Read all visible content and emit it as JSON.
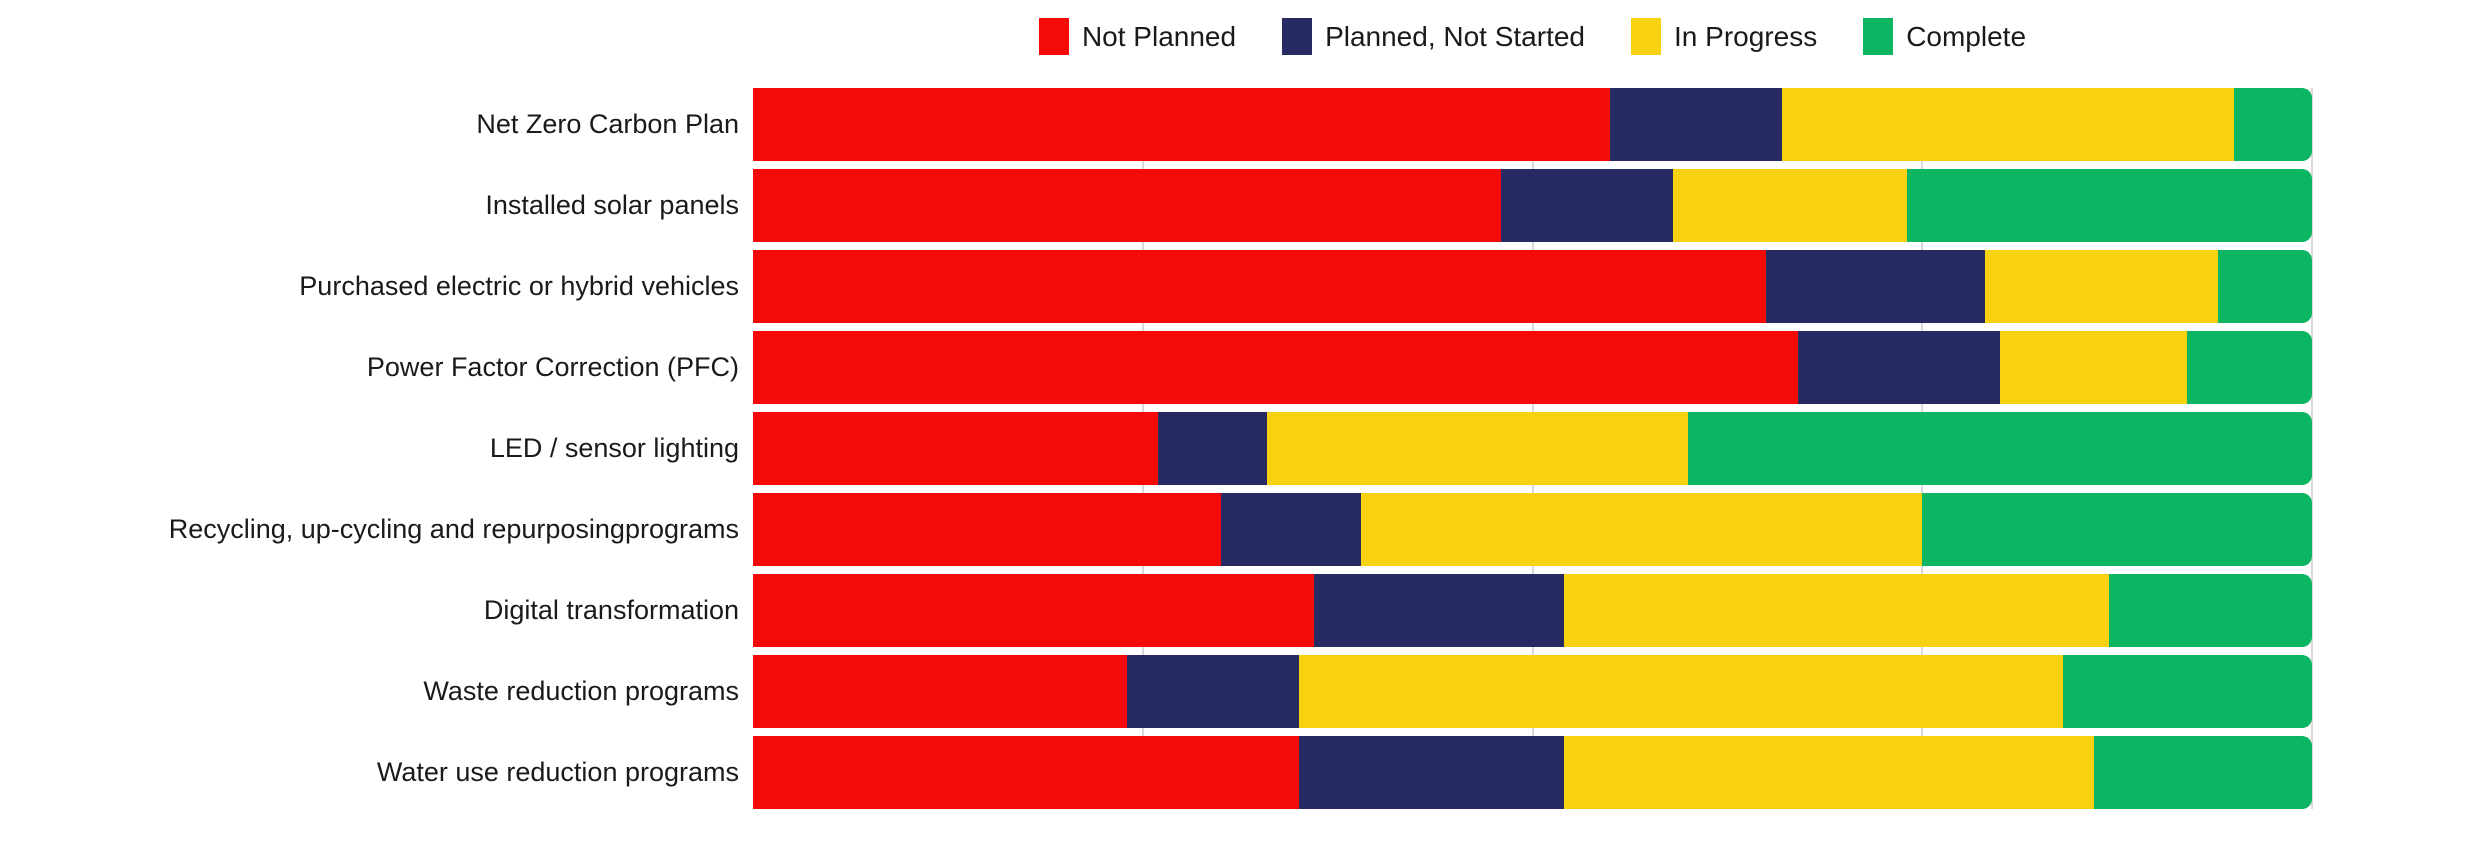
{
  "legend": {
    "items": [
      {
        "label": "Not Planned",
        "color": "#f50a0a",
        "icon": "legend-swatch-red"
      },
      {
        "label": "Planned, Not Started",
        "color": "#272a63",
        "icon": "legend-swatch-navy"
      },
      {
        "label": "In Progress",
        "color": "#f8d20e",
        "icon": "legend-swatch-yellow"
      },
      {
        "label": "Complete",
        "color": "#0cb561",
        "icon": "legend-swatch-green"
      }
    ]
  },
  "chart_data": {
    "type": "bar",
    "orientation": "horizontal",
    "stacked": true,
    "normalized": true,
    "unit": "percent",
    "title": "",
    "xlabel": "",
    "ylabel": "",
    "xlim": [
      0,
      100
    ],
    "grid": true,
    "gridlines_percent": [
      25,
      50,
      75,
      100
    ],
    "legend_position": "top-center",
    "categories": [
      "Net Zero Carbon Plan",
      "Installed solar panels",
      "Purchased electric or hybrid vehicles",
      "Power Factor Correction (PFC)",
      "LED / sensor lighting",
      "Recycling, up-cycling and repurposingprograms",
      "Digital transformation",
      "Waste reduction programs",
      "Water use reduction programs"
    ],
    "series": [
      {
        "name": "Not Planned",
        "color": "#f50a0a",
        "values": [
          55,
          48,
          65,
          67,
          26,
          30,
          36,
          24,
          35
        ]
      },
      {
        "name": "Planned, Not Started",
        "color": "#272a63",
        "values": [
          11,
          11,
          14,
          13,
          7,
          9,
          16,
          11,
          17
        ]
      },
      {
        "name": "In Progress",
        "color": "#f8d20e",
        "values": [
          29,
          15,
          15,
          12,
          27,
          36,
          35,
          49,
          34
        ]
      },
      {
        "name": "Complete",
        "color": "#0cb561",
        "values": [
          5,
          26,
          6,
          8,
          40,
          25,
          13,
          16,
          14
        ]
      }
    ],
    "colors": {
      "gridline": "#d9d9d9",
      "background": "#ffffff",
      "label_text": "#1a1a1a"
    }
  }
}
